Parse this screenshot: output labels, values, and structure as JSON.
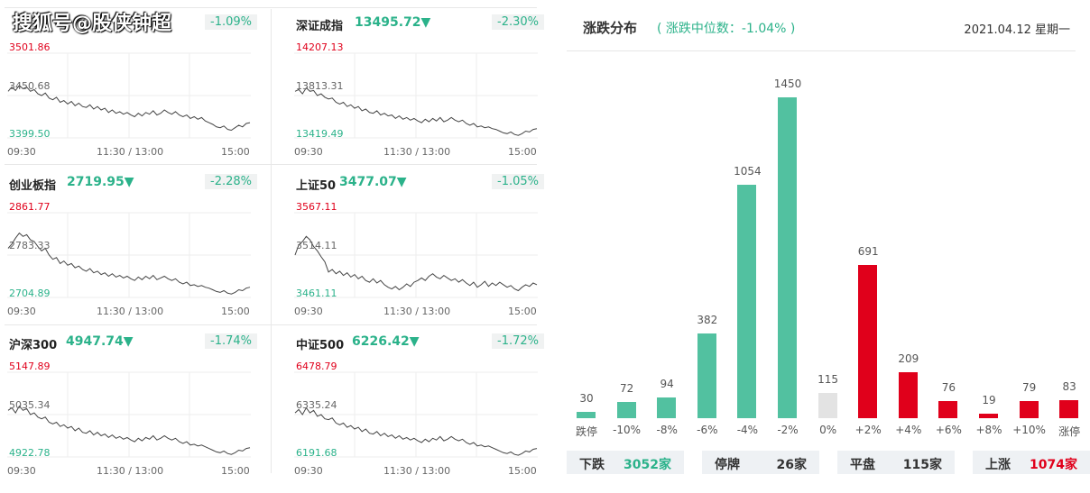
{
  "watermark": "搜狐号@股侠钟超",
  "panels": [
    {
      "name": "",
      "value": "",
      "change": "-1.09%",
      "max": "3501.86",
      "mid": "3450.68",
      "min": "3399.50",
      "t_open": "09:30",
      "t_mid": "11:30 / 13:00",
      "t_close": "15:00",
      "series": [
        0.55,
        0.6,
        0.56,
        0.62,
        0.58,
        0.6,
        0.55,
        0.57,
        0.52,
        0.5,
        0.53,
        0.47,
        0.45,
        0.48,
        0.42,
        0.44,
        0.4,
        0.43,
        0.38,
        0.41,
        0.37,
        0.36,
        0.39,
        0.34,
        0.37,
        0.33,
        0.35,
        0.3,
        0.33,
        0.29,
        0.31,
        0.28,
        0.3,
        0.27,
        0.25,
        0.29,
        0.26,
        0.3,
        0.28,
        0.32,
        0.27,
        0.29,
        0.33,
        0.3,
        0.28,
        0.31,
        0.27,
        0.25,
        0.27,
        0.23,
        0.25,
        0.22,
        0.24,
        0.2,
        0.18,
        0.16,
        0.13,
        0.12,
        0.14,
        0.1,
        0.09,
        0.12,
        0.15,
        0.13,
        0.17,
        0.18
      ]
    },
    {
      "name": "深证成指",
      "value": "13495.72▼",
      "change": "-2.30%",
      "max": "14207.13",
      "mid": "13813.31",
      "min": "13419.49",
      "t_open": "09:30",
      "t_mid": "11:30 / 13:00",
      "t_close": "15:00",
      "series": [
        0.55,
        0.57,
        0.52,
        0.59,
        0.55,
        0.56,
        0.5,
        0.52,
        0.48,
        0.46,
        0.47,
        0.42,
        0.4,
        0.42,
        0.37,
        0.39,
        0.35,
        0.37,
        0.32,
        0.34,
        0.3,
        0.29,
        0.32,
        0.27,
        0.29,
        0.26,
        0.27,
        0.23,
        0.26,
        0.22,
        0.24,
        0.21,
        0.23,
        0.2,
        0.18,
        0.22,
        0.19,
        0.23,
        0.2,
        0.24,
        0.19,
        0.21,
        0.24,
        0.21,
        0.19,
        0.21,
        0.17,
        0.15,
        0.17,
        0.13,
        0.14,
        0.12,
        0.13,
        0.11,
        0.1,
        0.08,
        0.06,
        0.05,
        0.07,
        0.04,
        0.03,
        0.05,
        0.08,
        0.07,
        0.1,
        0.11
      ]
    },
    {
      "name": "创业板指",
      "value": "2719.95▼",
      "change": "-2.28%",
      "max": "2861.77",
      "mid": "2783.33",
      "min": "2704.89",
      "t_open": "09:30",
      "t_mid": "11:30 / 13:00",
      "t_close": "15:00",
      "series": [
        0.58,
        0.63,
        0.7,
        0.76,
        0.72,
        0.74,
        0.68,
        0.66,
        0.6,
        0.55,
        0.58,
        0.5,
        0.45,
        0.47,
        0.4,
        0.43,
        0.38,
        0.4,
        0.35,
        0.37,
        0.33,
        0.31,
        0.34,
        0.29,
        0.31,
        0.27,
        0.29,
        0.25,
        0.28,
        0.24,
        0.26,
        0.23,
        0.25,
        0.22,
        0.2,
        0.24,
        0.21,
        0.25,
        0.22,
        0.26,
        0.21,
        0.23,
        0.25,
        0.22,
        0.2,
        0.22,
        0.18,
        0.16,
        0.18,
        0.14,
        0.15,
        0.13,
        0.14,
        0.12,
        0.11,
        0.09,
        0.07,
        0.06,
        0.08,
        0.05,
        0.04,
        0.06,
        0.09,
        0.08,
        0.11,
        0.12
      ]
    },
    {
      "name": "上证50",
      "value": "3477.07▼",
      "change": "-1.05%",
      "max": "3567.11",
      "mid": "3514.11",
      "min": "3461.11",
      "t_open": "09:30",
      "t_mid": "11:30 / 13:00",
      "t_close": "15:00",
      "series": [
        0.5,
        0.62,
        0.66,
        0.72,
        0.68,
        0.6,
        0.55,
        0.48,
        0.42,
        0.3,
        0.33,
        0.28,
        0.31,
        0.26,
        0.29,
        0.24,
        0.27,
        0.22,
        0.25,
        0.2,
        0.18,
        0.22,
        0.17,
        0.2,
        0.15,
        0.12,
        0.1,
        0.13,
        0.09,
        0.12,
        0.16,
        0.13,
        0.18,
        0.2,
        0.23,
        0.2,
        0.25,
        0.28,
        0.24,
        0.22,
        0.26,
        0.23,
        0.2,
        0.22,
        0.18,
        0.21,
        0.17,
        0.14,
        0.18,
        0.12,
        0.15,
        0.19,
        0.13,
        0.17,
        0.14,
        0.18,
        0.15,
        0.12,
        0.14,
        0.1,
        0.08,
        0.12,
        0.15,
        0.13,
        0.17,
        0.15
      ]
    },
    {
      "name": "沪深300",
      "value": "4947.74▼",
      "change": "-1.74%",
      "max": "5147.89",
      "mid": "5035.34",
      "min": "4922.78",
      "t_open": "09:30",
      "t_mid": "11:30 / 13:00",
      "t_close": "15:00",
      "series": [
        0.55,
        0.58,
        0.52,
        0.6,
        0.55,
        0.57,
        0.5,
        0.52,
        0.47,
        0.45,
        0.47,
        0.41,
        0.39,
        0.41,
        0.36,
        0.38,
        0.34,
        0.36,
        0.31,
        0.34,
        0.29,
        0.28,
        0.31,
        0.26,
        0.29,
        0.25,
        0.27,
        0.23,
        0.26,
        0.22,
        0.24,
        0.21,
        0.23,
        0.2,
        0.18,
        0.22,
        0.19,
        0.23,
        0.21,
        0.25,
        0.2,
        0.22,
        0.25,
        0.22,
        0.2,
        0.22,
        0.18,
        0.16,
        0.18,
        0.14,
        0.15,
        0.13,
        0.14,
        0.12,
        0.1,
        0.08,
        0.06,
        0.05,
        0.07,
        0.04,
        0.03,
        0.05,
        0.08,
        0.07,
        0.1,
        0.11
      ]
    },
    {
      "name": "中证500",
      "value": "6226.42▼",
      "change": "-1.72%",
      "max": "6478.79",
      "mid": "6335.24",
      "min": "6191.68",
      "t_open": "09:30",
      "t_mid": "11:30 / 13:00",
      "t_close": "15:00",
      "series": [
        0.52,
        0.56,
        0.5,
        0.58,
        0.52,
        0.55,
        0.48,
        0.5,
        0.45,
        0.44,
        0.46,
        0.4,
        0.38,
        0.4,
        0.35,
        0.37,
        0.33,
        0.35,
        0.3,
        0.33,
        0.28,
        0.27,
        0.3,
        0.25,
        0.28,
        0.24,
        0.26,
        0.22,
        0.25,
        0.21,
        0.23,
        0.2,
        0.22,
        0.19,
        0.17,
        0.21,
        0.18,
        0.22,
        0.2,
        0.24,
        0.19,
        0.21,
        0.24,
        0.21,
        0.19,
        0.21,
        0.17,
        0.15,
        0.17,
        0.13,
        0.14,
        0.12,
        0.13,
        0.11,
        0.09,
        0.07,
        0.05,
        0.04,
        0.06,
        0.03,
        0.02,
        0.04,
        0.07,
        0.06,
        0.09,
        0.1
      ]
    }
  ],
  "dist": {
    "title": "涨跌分布",
    "subtitle": "( 涨跌中位数：-1.04% )",
    "date": "2021.04.12 星期一",
    "colors": {
      "down": "#52c1a0",
      "flat": "#e3e3e3",
      "up": "#e0001b"
    },
    "summary": [
      {
        "label": "下跌",
        "value": "3052",
        "unit": "家",
        "color": "#2bb28a"
      },
      {
        "label": "停牌",
        "value": "26",
        "unit": "家",
        "color": "#333333"
      },
      {
        "label": "平盘",
        "value": "115",
        "unit": "家",
        "color": "#333333"
      },
      {
        "label": "上涨",
        "value": "1074",
        "unit": "家",
        "color": "#e0001b"
      }
    ]
  },
  "chart_data": {
    "type": "bar",
    "categories": [
      "跌停",
      "-10%",
      "-8%",
      "-6%",
      "-4%",
      "-2%",
      "0%",
      "+2%",
      "+4%",
      "+6%",
      "+8%",
      "+10%",
      "涨停"
    ],
    "values": [
      30,
      72,
      94,
      382,
      1054,
      1450,
      115,
      691,
      209,
      76,
      19,
      79,
      83
    ],
    "bar_kinds": [
      "down",
      "down",
      "down",
      "down",
      "down",
      "down",
      "flat",
      "up",
      "up",
      "up",
      "up",
      "up",
      "up"
    ],
    "title": "涨跌分布",
    "xlabel": "",
    "ylabel": "",
    "ylim": [
      0,
      1450
    ]
  }
}
